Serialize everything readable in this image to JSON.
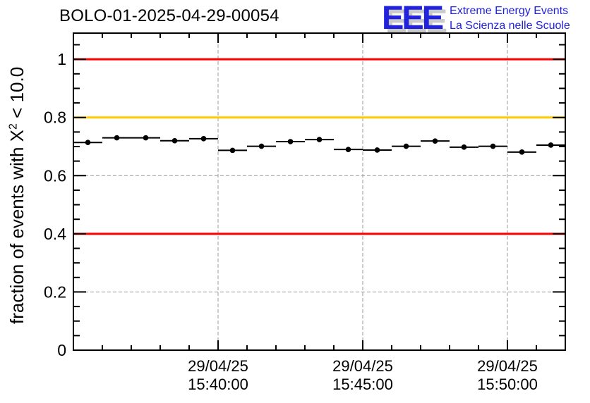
{
  "logo": {
    "letters": "EEE",
    "line1": "Extreme Energy Events",
    "line2": "La Scienza nelle Scuole",
    "color": "#2222dd",
    "shadow_color": "#c9c9c9"
  },
  "chart_data": {
    "type": "scatter",
    "title": "BOLO-01-2025-04-29-00054",
    "ylabel": "fraction of events with X^2 < 10.0",
    "ylabel_prefix": "fraction of events with X",
    "ylabel_sup": "2",
    "ylabel_suffix": " < 10.0",
    "xlabel": "",
    "ylim": [
      0,
      1.09
    ],
    "xlim_minutes": [
      0,
      17
    ],
    "bin_width_minutes": 1,
    "grid": true,
    "y_major_ticks": [
      0,
      0.2,
      0.4,
      0.6,
      0.8,
      1.0
    ],
    "y_tick_labels": [
      "0",
      "0.2",
      "0.4",
      "0.6",
      "0.8",
      "1"
    ],
    "y_minor_step": 0.05,
    "x_minor_step_minutes": 1,
    "x_major_ticks": [
      {
        "t": 5,
        "date": "29/04/25",
        "time": "15:40:00"
      },
      {
        "t": 10,
        "date": "29/04/25",
        "time": "15:45:00"
      },
      {
        "t": 15,
        "date": "29/04/25",
        "time": "15:50:00"
      }
    ],
    "threshold_lines": [
      {
        "value": 1.0,
        "color": "#ff0000"
      },
      {
        "value": 0.8,
        "color": "#ffcc00"
      },
      {
        "value": 0.4,
        "color": "#ff0000"
      }
    ],
    "colors": {
      "frame": "#000000",
      "grid": "#999999",
      "marker": "#000000",
      "red_line": "#ff0000",
      "orange_line": "#ffcc00"
    },
    "points": [
      {
        "t": 0.5,
        "time": "15:35:30",
        "value": 0.714,
        "xerr": 0.5
      },
      {
        "t": 1.5,
        "time": "15:36:30",
        "value": 0.73,
        "xerr": 0.5
      },
      {
        "t": 2.5,
        "time": "15:37:30",
        "value": 0.73,
        "xerr": 0.5
      },
      {
        "t": 3.5,
        "time": "15:38:30",
        "value": 0.72,
        "xerr": 0.5
      },
      {
        "t": 4.5,
        "time": "15:39:30",
        "value": 0.727,
        "xerr": 0.5
      },
      {
        "t": 5.5,
        "time": "15:40:30",
        "value": 0.687,
        "xerr": 0.5
      },
      {
        "t": 6.5,
        "time": "15:41:30",
        "value": 0.701,
        "xerr": 0.5
      },
      {
        "t": 7.5,
        "time": "15:42:30",
        "value": 0.717,
        "xerr": 0.5
      },
      {
        "t": 8.5,
        "time": "15:43:30",
        "value": 0.724,
        "xerr": 0.5
      },
      {
        "t": 9.5,
        "time": "15:44:30",
        "value": 0.69,
        "xerr": 0.5
      },
      {
        "t": 10.5,
        "time": "15:45:30",
        "value": 0.688,
        "xerr": 0.5
      },
      {
        "t": 11.5,
        "time": "15:46:30",
        "value": 0.701,
        "xerr": 0.5
      },
      {
        "t": 12.5,
        "time": "15:47:30",
        "value": 0.719,
        "xerr": 0.5
      },
      {
        "t": 13.5,
        "time": "15:48:30",
        "value": 0.698,
        "xerr": 0.5
      },
      {
        "t": 14.5,
        "time": "15:49:30",
        "value": 0.701,
        "xerr": 0.5
      },
      {
        "t": 15.5,
        "time": "15:50:30",
        "value": 0.681,
        "xerr": 0.5
      },
      {
        "t": 16.5,
        "time": "15:51:30",
        "value": 0.705,
        "xerr": 0.5
      }
    ]
  }
}
